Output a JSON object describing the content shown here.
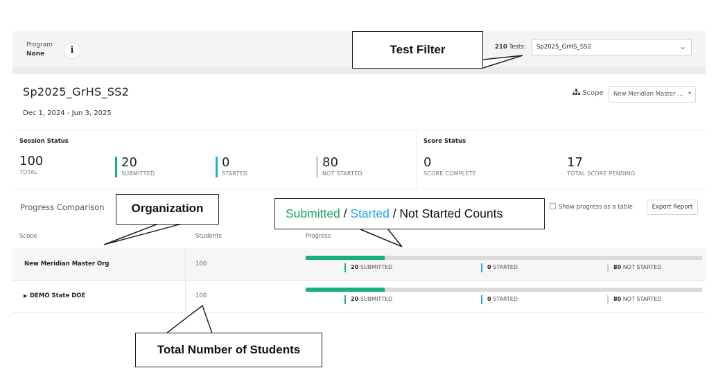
{
  "header": {
    "program_label": "Program",
    "program_value": "None",
    "info_icon": "i",
    "tests_count": "210",
    "tests_suffix": "Tests:",
    "selected_test": "Sp2025_GrHS_SS2"
  },
  "test": {
    "title": "Sp2025_GrHS_SS2",
    "dates": "Dec 1, 2024 - Jun 3, 2025",
    "scope_label": "Scope",
    "scope_value": "New Meridian Master ..."
  },
  "session_status": {
    "title": "Session Status",
    "stats": [
      {
        "value": "100",
        "label": "TOTAL"
      },
      {
        "value": "20",
        "label": "SUBMITTED",
        "color": "#16b27c"
      },
      {
        "value": "0",
        "label": "STARTED",
        "color": "#1fa8e0"
      },
      {
        "value": "80",
        "label": "NOT STARTED",
        "color": "#cfcfcf"
      }
    ]
  },
  "score_status": {
    "title": "Score Status",
    "stats": [
      {
        "value": "0",
        "label": "SCORE COMPLETE"
      },
      {
        "value": "17",
        "label": "TOTAL SCORE PENDING"
      }
    ]
  },
  "progress": {
    "title": "Progress Comparison",
    "show_table_label": "Show progress as a table",
    "export_label": "Export Report",
    "columns": {
      "scope": "Scope",
      "students": "Students",
      "progress": "Progress"
    },
    "rows": [
      {
        "name": "New Meridian Master Org",
        "students": "100",
        "submitted_fraction": 0.2,
        "submitted": "20",
        "submitted_label": "SUBMITTED",
        "started": "0",
        "started_label": "STARTED",
        "not_started": "80",
        "not_started_label": "NOT STARTED"
      },
      {
        "name": "DEMO State DOE",
        "students": "100",
        "submitted_fraction": 0.2,
        "expandable": true,
        "submitted": "20",
        "submitted_label": "SUBMITTED",
        "started": "0",
        "started_label": "STARTED",
        "not_started": "80",
        "not_started_label": "NOT STARTED"
      }
    ]
  },
  "callouts": {
    "test_filter": "Test Filter",
    "organization": "Organization",
    "counts_submitted": "Submitted",
    "counts_sep1": " / ",
    "counts_started": "Started",
    "counts_rest": " / Not Started Counts",
    "total_students": "Total Number of Students"
  },
  "colors": {
    "submitted": "#16b27c",
    "started": "#1fa8e0",
    "not_started": "#cfcfcf",
    "callout_green": "#22a05a",
    "callout_blue": "#1aa3e0"
  }
}
